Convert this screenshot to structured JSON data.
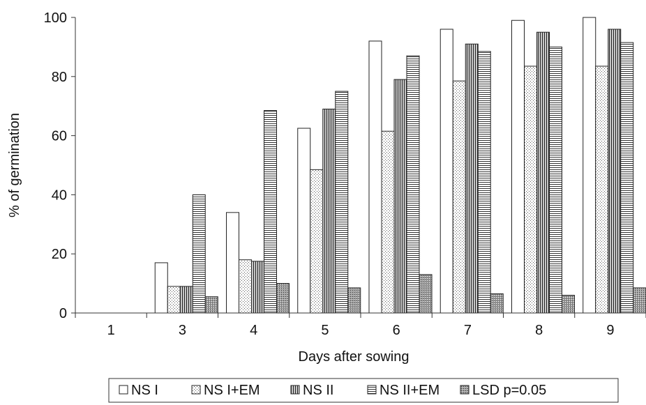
{
  "chart_data": {
    "type": "bar",
    "xlabel": "Days after sowing",
    "ylabel": "% of germination",
    "ylim": [
      0,
      100
    ],
    "yticks": [
      0,
      20,
      40,
      60,
      80,
      100
    ],
    "categories": [
      "1",
      "3",
      "4",
      "5",
      "6",
      "7",
      "8",
      "9"
    ],
    "series": [
      {
        "name": "NS I",
        "values": [
          0,
          17,
          34,
          62.5,
          92,
          96,
          99,
          100
        ]
      },
      {
        "name": "NS I+EM",
        "values": [
          0,
          9,
          18,
          48.5,
          61.5,
          78.5,
          83.5,
          83.5
        ]
      },
      {
        "name": "NS II",
        "values": [
          0,
          9,
          17.5,
          69,
          79,
          91,
          95,
          96
        ]
      },
      {
        "name": "NS II+EM",
        "values": [
          0,
          40,
          68.5,
          75,
          87,
          88.5,
          90,
          91.5
        ]
      },
      {
        "name": "LSD p=0.05",
        "values": [
          0,
          5.5,
          10,
          8.5,
          13,
          6.5,
          6,
          8.5
        ]
      }
    ],
    "legend_position": "bottom",
    "grid": false
  }
}
